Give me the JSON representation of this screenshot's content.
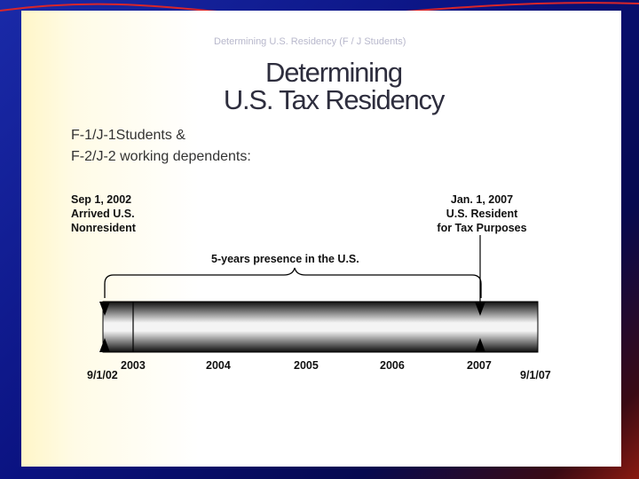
{
  "header": {
    "small_title": "Determining U.S. Residency (F / J Students)"
  },
  "title": {
    "line1": "Determining",
    "line2": "U.S. Tax Residency"
  },
  "subtitle": {
    "line1": "F-1/J-1Students &",
    "line2": "F-2/J-2 working dependents:"
  },
  "left_event": {
    "date": "Sep 1, 2002",
    "line2": "Arrived U.S.",
    "line3": "Nonresident"
  },
  "right_event": {
    "date": "Jan. 1, 2007",
    "line2": "U.S. Resident",
    "line3": "for Tax Purposes"
  },
  "span_label": "5-years presence in the U.S.",
  "timeline": {
    "start_label": "9/1/02",
    "end_label": "9/1/07",
    "years": [
      "2003",
      "2004",
      "2005",
      "2006",
      "2007"
    ]
  },
  "colors": {
    "bar_dark": "#111111",
    "bar_light": "#f4f4f4",
    "background_blue": "#0a1280",
    "accent_red": "#c0201a"
  }
}
